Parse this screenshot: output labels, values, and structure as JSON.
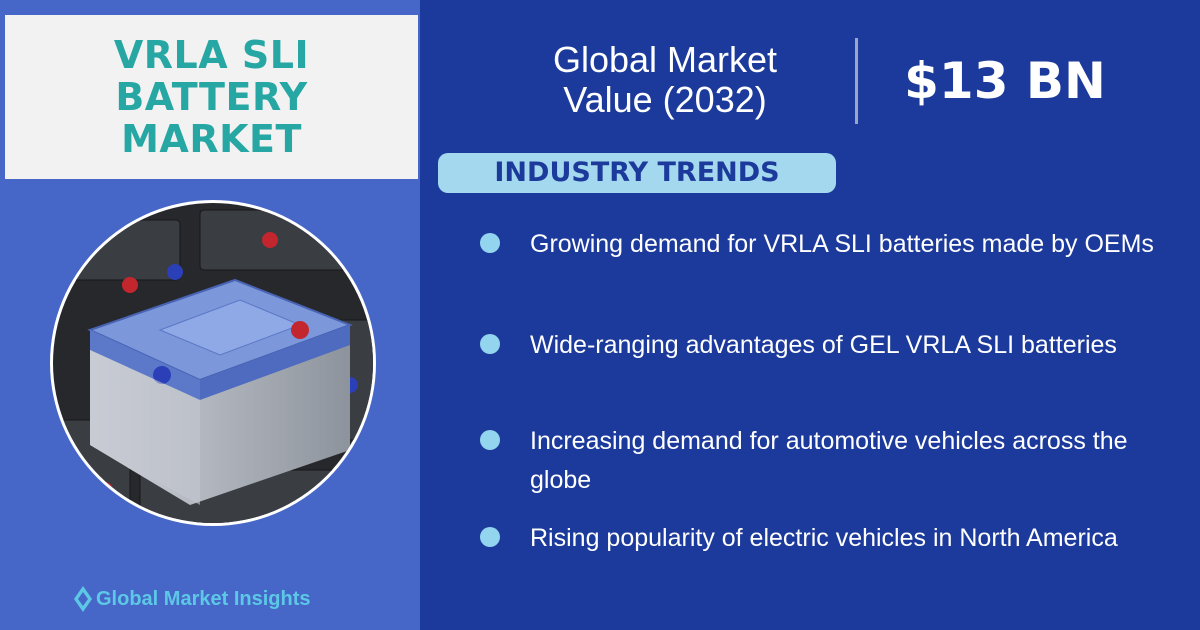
{
  "title": [
    "VRLA SLI",
    "BATTERY",
    "MARKET"
  ],
  "market": {
    "label": [
      "Global Market",
      "Value (2032)"
    ],
    "value": "$13 BN"
  },
  "trends": {
    "heading": "INDUSTRY TRENDS",
    "items": [
      "Growing demand for VRLA SLI batteries made by OEMs",
      "Wide-ranging advantages of GEL VRLA SLI batteries",
      "Increasing demand for automotive vehicles across the globe",
      "Rising popularity of electric vehicles in North America"
    ]
  },
  "brand": "Global Market Insights"
}
